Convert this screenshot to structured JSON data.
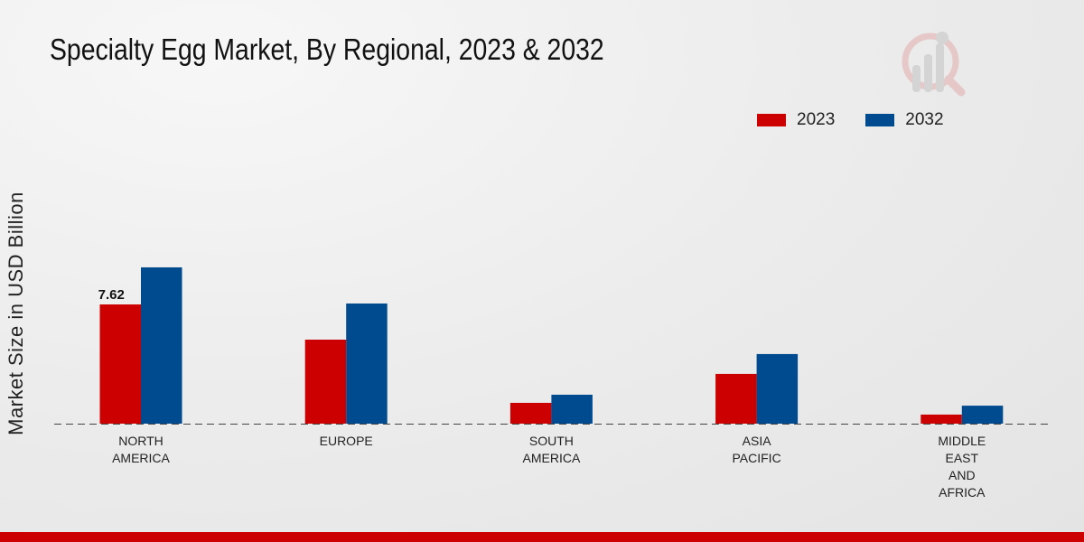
{
  "chart_data": {
    "type": "bar",
    "title": "Specialty Egg Market, By Regional, 2023 & 2032",
    "xlabel": "",
    "ylabel": "Market Size in USD Billion",
    "categories": [
      [
        "NORTH",
        "AMERICA"
      ],
      [
        "EUROPE"
      ],
      [
        "SOUTH",
        "AMERICA"
      ],
      [
        "ASIA",
        "PACIFIC"
      ],
      [
        "MIDDLE",
        "EAST",
        "AND",
        "AFRICA"
      ]
    ],
    "series": [
      {
        "name": "2023",
        "color": "#cc0000",
        "values": [
          7.62,
          5.37,
          1.33,
          3.18,
          0.58
        ]
      },
      {
        "name": "2032",
        "color": "#004a8f",
        "values": [
          9.99,
          7.68,
          1.85,
          4.45,
          1.15
        ]
      }
    ],
    "data_labels": [
      {
        "series": 0,
        "index": 0,
        "text": "7.62"
      }
    ],
    "ylim": [
      0,
      11
    ],
    "legend": "top-right",
    "grid": false
  }
}
